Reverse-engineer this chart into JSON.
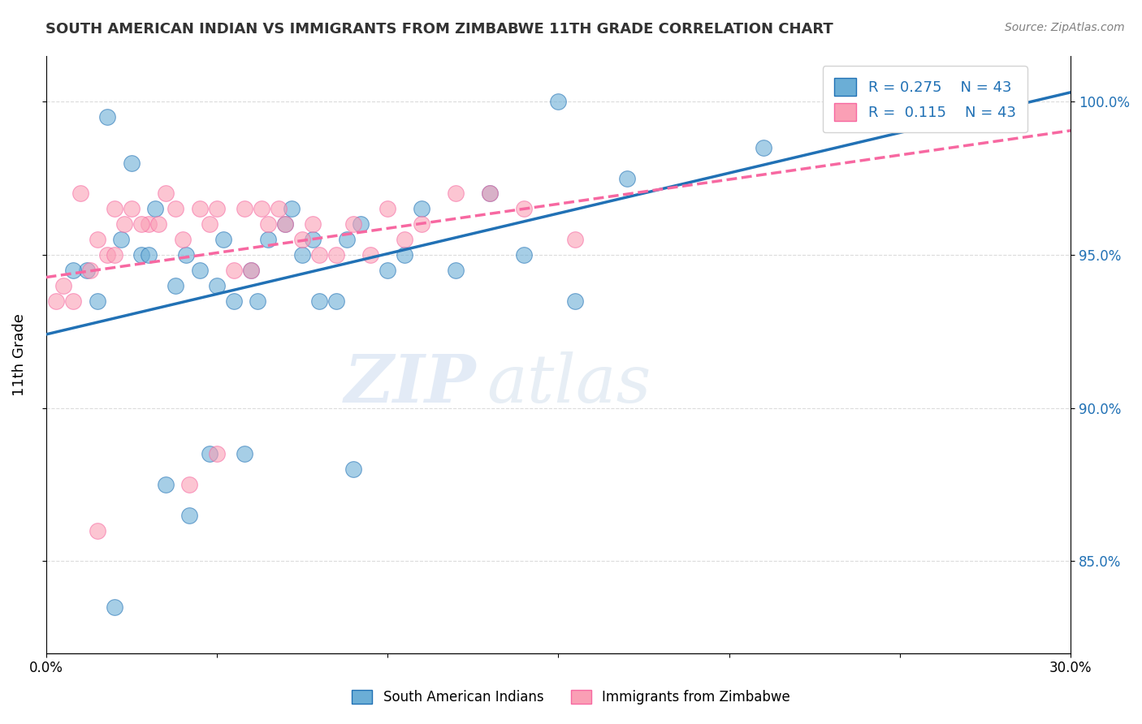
{
  "title": "SOUTH AMERICAN INDIAN VS IMMIGRANTS FROM ZIMBABWE 11TH GRADE CORRELATION CHART",
  "source": "Source: ZipAtlas.com",
  "ylabel": "11th Grade",
  "xlim": [
    0.0,
    30.0
  ],
  "ylim": [
    82.0,
    101.5
  ],
  "x_ticks": [
    0.0,
    5.0,
    10.0,
    15.0,
    20.0,
    25.0,
    30.0
  ],
  "x_tick_labels": [
    "0.0%",
    "",
    "",
    "",
    "",
    "",
    "30.0%"
  ],
  "y_ticks": [
    85.0,
    90.0,
    95.0,
    100.0
  ],
  "y_tick_labels": [
    "85.0%",
    "90.0%",
    "95.0%",
    "100.0%"
  ],
  "blue_color": "#6baed6",
  "pink_color": "#fa9fb5",
  "blue_line_color": "#2171b5",
  "pink_line_color": "#f768a1",
  "watermark_zip": "ZIP",
  "watermark_atlas": "atlas",
  "blue_scatter_x": [
    1.2,
    1.8,
    2.5,
    3.2,
    3.8,
    4.1,
    4.5,
    5.0,
    5.5,
    6.0,
    6.5,
    7.0,
    7.8,
    8.5,
    9.2,
    10.0,
    10.5,
    11.0,
    12.0,
    13.0,
    14.0,
    15.5,
    17.0,
    2.0,
    2.8,
    3.5,
    4.2,
    4.8,
    5.2,
    6.2,
    7.5,
    8.0,
    9.0,
    0.8,
    1.5,
    3.0,
    2.2,
    5.8,
    7.2,
    8.8,
    15.0,
    21.0,
    25.5
  ],
  "blue_scatter_y": [
    94.5,
    99.5,
    98.0,
    96.5,
    94.0,
    95.0,
    94.5,
    94.0,
    93.5,
    94.5,
    95.5,
    96.0,
    95.5,
    93.5,
    96.0,
    94.5,
    95.0,
    96.5,
    94.5,
    97.0,
    95.0,
    93.5,
    97.5,
    83.5,
    95.0,
    87.5,
    86.5,
    88.5,
    95.5,
    93.5,
    95.0,
    93.5,
    88.0,
    94.5,
    93.5,
    95.0,
    95.5,
    88.5,
    96.5,
    95.5,
    100.0,
    98.5,
    100.5
  ],
  "pink_scatter_x": [
    0.5,
    1.0,
    1.5,
    2.0,
    2.5,
    3.0,
    3.5,
    4.0,
    4.5,
    5.0,
    5.5,
    6.0,
    6.5,
    7.0,
    7.5,
    8.0,
    8.5,
    9.0,
    9.5,
    10.0,
    10.5,
    11.0,
    12.0,
    13.0,
    14.0,
    0.8,
    1.8,
    2.8,
    3.8,
    4.8,
    5.8,
    6.8,
    7.8,
    0.3,
    1.3,
    2.3,
    3.3,
    6.3,
    15.5,
    4.2,
    1.5,
    5.0,
    2.0
  ],
  "pink_scatter_y": [
    94.0,
    97.0,
    95.5,
    96.5,
    96.5,
    96.0,
    97.0,
    95.5,
    96.5,
    96.5,
    94.5,
    94.5,
    96.0,
    96.0,
    95.5,
    95.0,
    95.0,
    96.0,
    95.0,
    96.5,
    95.5,
    96.0,
    97.0,
    97.0,
    96.5,
    93.5,
    95.0,
    96.0,
    96.5,
    96.0,
    96.5,
    96.5,
    96.0,
    93.5,
    94.5,
    96.0,
    96.0,
    96.5,
    95.5,
    87.5,
    86.0,
    88.5,
    95.0
  ]
}
